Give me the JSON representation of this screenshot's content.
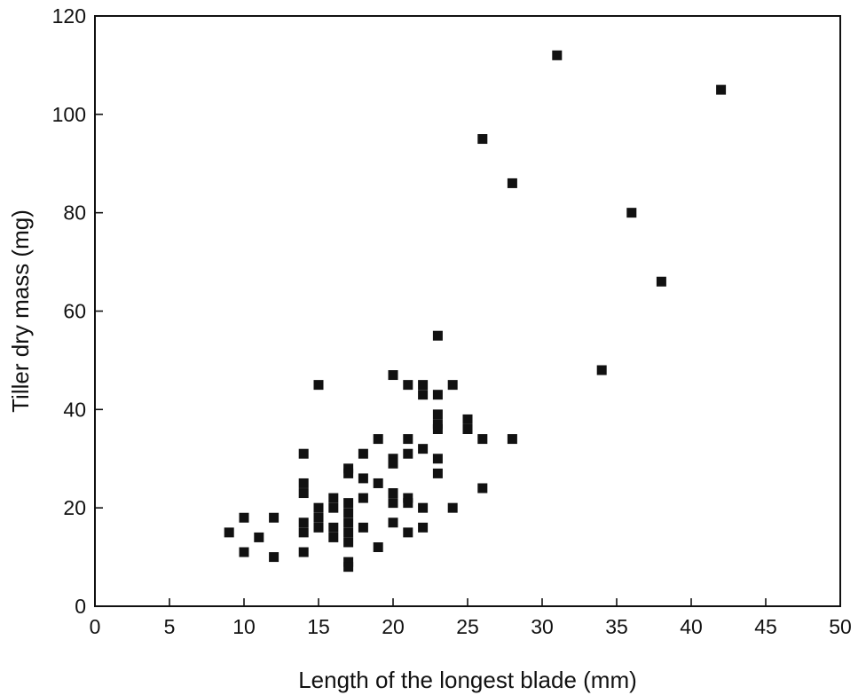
{
  "chart_data": {
    "type": "scatter",
    "title": "",
    "xlabel": "Length of the longest blade (mm)",
    "ylabel": "Tiller dry mass (mg)",
    "xlim": [
      0,
      50
    ],
    "ylim": [
      0,
      120
    ],
    "xticks": [
      0,
      5,
      10,
      15,
      20,
      25,
      30,
      35,
      40,
      45,
      50
    ],
    "yticks": [
      0,
      20,
      40,
      60,
      80,
      100,
      120
    ],
    "grid": false,
    "legend": "none",
    "marker_color": "#111111",
    "points": [
      {
        "x": 9,
        "y": 15
      },
      {
        "x": 10,
        "y": 18
      },
      {
        "x": 10,
        "y": 11
      },
      {
        "x": 11,
        "y": 14
      },
      {
        "x": 12,
        "y": 18
      },
      {
        "x": 12,
        "y": 10
      },
      {
        "x": 14,
        "y": 31
      },
      {
        "x": 14,
        "y": 25
      },
      {
        "x": 14,
        "y": 23
      },
      {
        "x": 14,
        "y": 17
      },
      {
        "x": 14,
        "y": 15
      },
      {
        "x": 14,
        "y": 11
      },
      {
        "x": 15,
        "y": 45
      },
      {
        "x": 15,
        "y": 20
      },
      {
        "x": 15,
        "y": 18
      },
      {
        "x": 15,
        "y": 16
      },
      {
        "x": 16,
        "y": 22
      },
      {
        "x": 16,
        "y": 20
      },
      {
        "x": 16,
        "y": 16
      },
      {
        "x": 16,
        "y": 14
      },
      {
        "x": 17,
        "y": 28
      },
      {
        "x": 17,
        "y": 27
      },
      {
        "x": 17,
        "y": 21
      },
      {
        "x": 17,
        "y": 19
      },
      {
        "x": 17,
        "y": 17
      },
      {
        "x": 17,
        "y": 15
      },
      {
        "x": 17,
        "y": 13
      },
      {
        "x": 17,
        "y": 9
      },
      {
        "x": 17,
        "y": 8
      },
      {
        "x": 18,
        "y": 31
      },
      {
        "x": 18,
        "y": 26
      },
      {
        "x": 18,
        "y": 22
      },
      {
        "x": 18,
        "y": 16
      },
      {
        "x": 19,
        "y": 34
      },
      {
        "x": 19,
        "y": 25
      },
      {
        "x": 19,
        "y": 12
      },
      {
        "x": 20,
        "y": 47
      },
      {
        "x": 20,
        "y": 30
      },
      {
        "x": 20,
        "y": 29
      },
      {
        "x": 20,
        "y": 23
      },
      {
        "x": 20,
        "y": 21
      },
      {
        "x": 20,
        "y": 17
      },
      {
        "x": 21,
        "y": 45
      },
      {
        "x": 21,
        "y": 34
      },
      {
        "x": 21,
        "y": 31
      },
      {
        "x": 21,
        "y": 22
      },
      {
        "x": 21,
        "y": 21
      },
      {
        "x": 21,
        "y": 15
      },
      {
        "x": 22,
        "y": 45
      },
      {
        "x": 22,
        "y": 43
      },
      {
        "x": 22,
        "y": 32
      },
      {
        "x": 22,
        "y": 20
      },
      {
        "x": 22,
        "y": 16
      },
      {
        "x": 23,
        "y": 55
      },
      {
        "x": 23,
        "y": 43
      },
      {
        "x": 23,
        "y": 39
      },
      {
        "x": 23,
        "y": 37
      },
      {
        "x": 23,
        "y": 36
      },
      {
        "x": 23,
        "y": 30
      },
      {
        "x": 23,
        "y": 27
      },
      {
        "x": 24,
        "y": 45
      },
      {
        "x": 24,
        "y": 20
      },
      {
        "x": 25,
        "y": 38
      },
      {
        "x": 25,
        "y": 36
      },
      {
        "x": 26,
        "y": 95
      },
      {
        "x": 26,
        "y": 34
      },
      {
        "x": 26,
        "y": 24
      },
      {
        "x": 28,
        "y": 86
      },
      {
        "x": 28,
        "y": 34
      },
      {
        "x": 31,
        "y": 112
      },
      {
        "x": 34,
        "y": 48
      },
      {
        "x": 36,
        "y": 80
      },
      {
        "x": 38,
        "y": 66
      },
      {
        "x": 42,
        "y": 105
      }
    ]
  }
}
